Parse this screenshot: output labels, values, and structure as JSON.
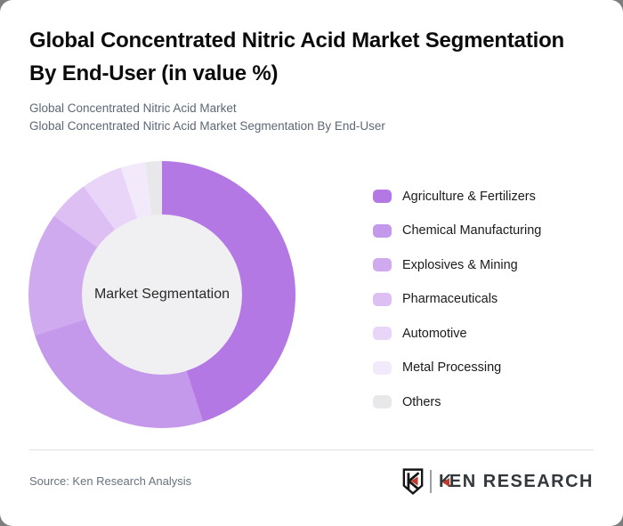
{
  "header": {
    "title_line1": "Global Concentrated Nitric Acid Market Segmentation",
    "title_line2": "By End-User (in value %)",
    "subtitle1": "Global Concentrated Nitric Acid Market",
    "subtitle2": "Global Concentrated Nitric Acid Market Segmentation By End-User"
  },
  "chart_data": {
    "type": "pie",
    "variant": "donut",
    "title": "Global Concentrated Nitric Acid Market Segmentation By End-User (in value %)",
    "unit": "value %",
    "center_label": "Market Segmentation",
    "start_angle_deg": 0,
    "direction": "clockwise",
    "inner_radius_ratio": 0.6,
    "legend_position": "right",
    "categories": [
      "Agriculture & Fertilizers",
      "Chemical Manufacturing",
      "Explosives & Mining",
      "Pharmaceuticals",
      "Automotive",
      "Metal Processing",
      "Others"
    ],
    "values": [
      45,
      25,
      15,
      5,
      5,
      3,
      2
    ],
    "colors": [
      "#b378e4",
      "#c498ea",
      "#d0aaef",
      "#ddbff4",
      "#e8d5f8",
      "#f2e9fb",
      "#e8e7ea"
    ],
    "hole_color": "#f0eff1"
  },
  "footer": {
    "source": "Source: Ken Research Analysis",
    "logo": {
      "mark_letter": "K",
      "brand_first": "K",
      "brand_rest": "EN RESEARCH",
      "accent": "#c0392b"
    }
  }
}
